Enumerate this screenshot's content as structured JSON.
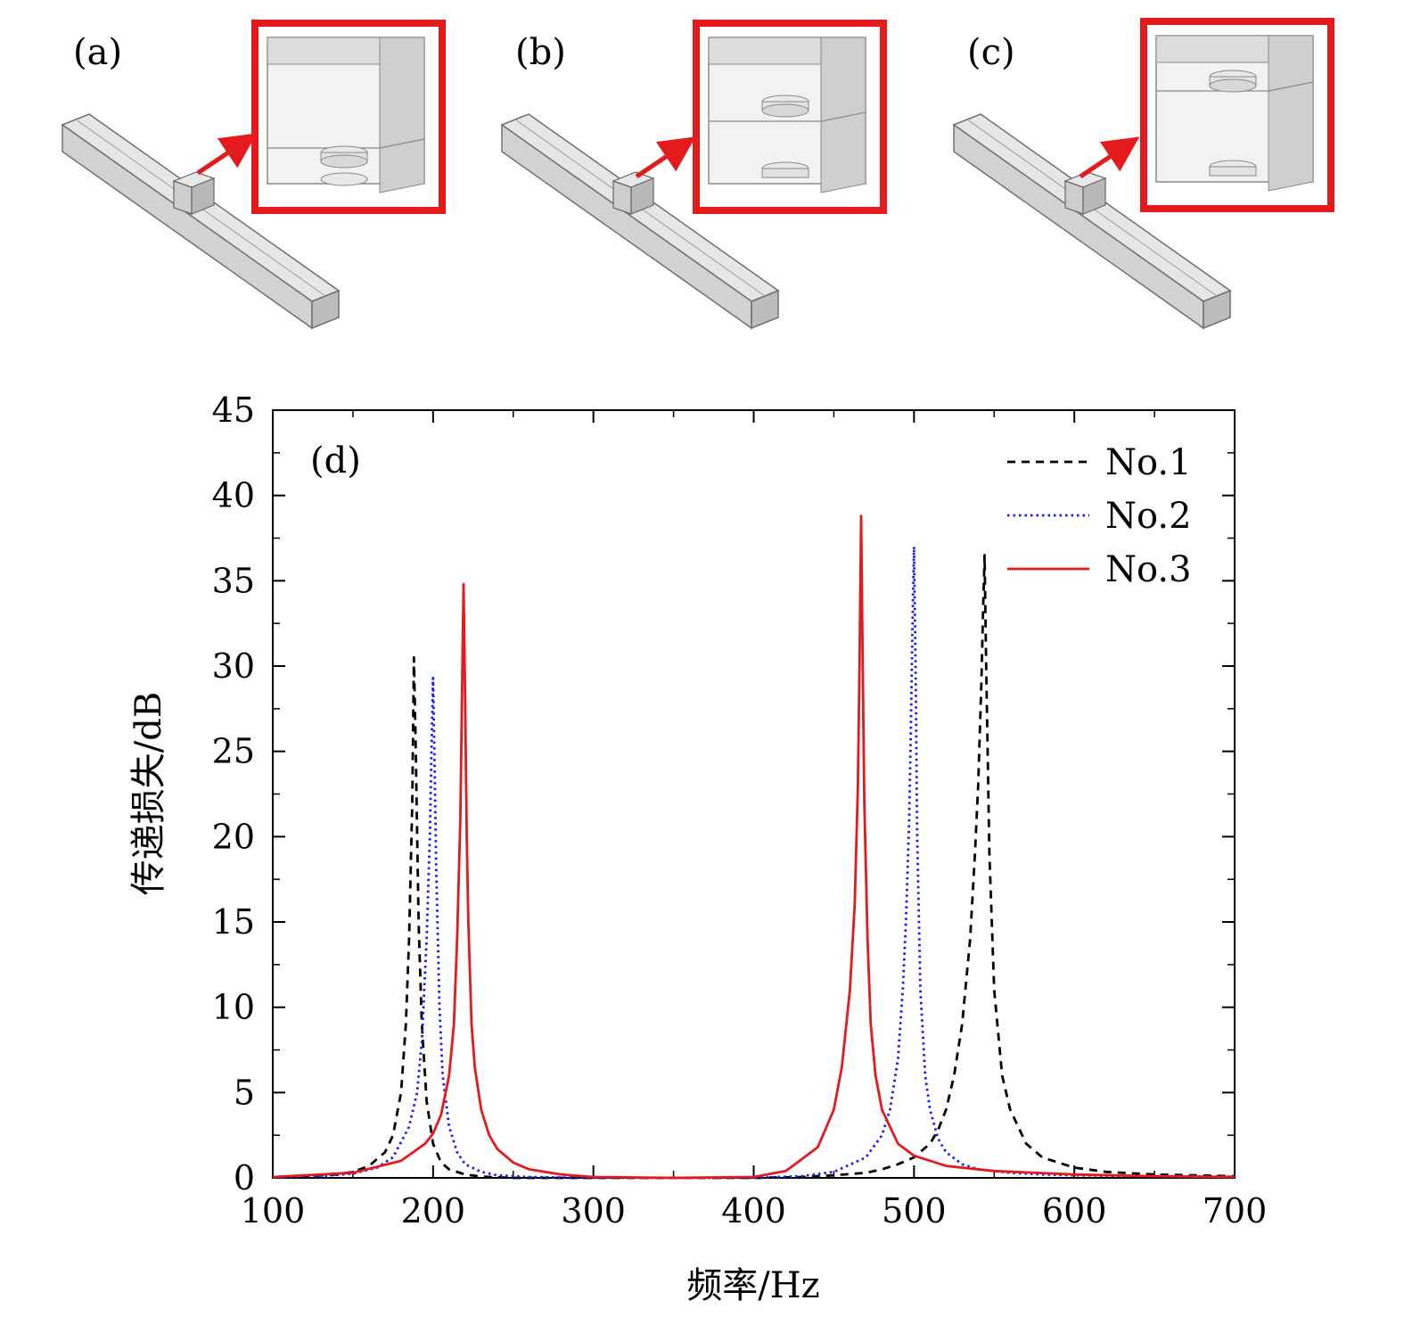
{
  "panels": {
    "a": {
      "label": "(a)"
    },
    "b": {
      "label": "(b)"
    },
    "c": {
      "label": "(c)"
    }
  },
  "colors": {
    "beam_face": "#dedede",
    "beam_edge": "#6f6f6f",
    "highlight_box": "#e41a1c",
    "arrow": "#e41a1c",
    "no1": "#000000",
    "no2": "#1a1aff",
    "no3": "#e41a1c"
  },
  "chart_data": {
    "type": "line",
    "panel_label": "(d)",
    "xlabel": "频率/Hz",
    "ylabel": "传递损失/dB",
    "xlim": [
      100,
      700
    ],
    "ylim": [
      0,
      45
    ],
    "xticks": [
      100,
      200,
      300,
      400,
      500,
      600,
      700
    ],
    "yticks": [
      0,
      5,
      10,
      15,
      20,
      25,
      30,
      35,
      40,
      45
    ],
    "legend_position": "top-right",
    "grid": false,
    "series": [
      {
        "name": "No.1",
        "style": "dashed",
        "color": "#000000",
        "x": [
          100,
          120,
          140,
          150,
          160,
          170,
          175,
          180,
          183,
          185,
          187,
          188,
          189,
          191,
          193,
          196,
          200,
          205,
          210,
          220,
          230,
          240,
          250,
          260,
          280,
          300,
          350,
          400,
          430,
          450,
          470,
          480,
          490,
          500,
          510,
          515,
          520,
          525,
          530,
          535,
          538,
          540,
          542,
          543,
          544,
          545,
          547,
          550,
          555,
          560,
          570,
          580,
          600,
          620,
          650,
          700
        ],
        "y": [
          0.05,
          0.1,
          0.2,
          0.35,
          0.7,
          1.5,
          2.5,
          5.0,
          9.0,
          14.0,
          22.0,
          30.5,
          26.0,
          15.0,
          9.0,
          4.5,
          2.0,
          0.9,
          0.5,
          0.2,
          0.08,
          0.03,
          0.0,
          0.0,
          0.0,
          0.0,
          0.0,
          0.0,
          0.05,
          0.15,
          0.3,
          0.5,
          0.8,
          1.2,
          2.0,
          2.8,
          4.0,
          6.0,
          9.0,
          14.0,
          19.0,
          23.0,
          29.0,
          33.0,
          36.5,
          30.0,
          19.0,
          11.0,
          6.0,
          4.0,
          2.0,
          1.2,
          0.6,
          0.35,
          0.2,
          0.1
        ]
      },
      {
        "name": "No.2",
        "style": "dotted",
        "color": "#1a1aff",
        "x": [
          100,
          130,
          150,
          165,
          175,
          185,
          190,
          193,
          196,
          198,
          199,
          200,
          201,
          202,
          204,
          206,
          210,
          215,
          220,
          230,
          240,
          260,
          280,
          300,
          400,
          430,
          450,
          470,
          480,
          485,
          490,
          493,
          495,
          497,
          498,
          499,
          500,
          501,
          502,
          504,
          507,
          510,
          515,
          520,
          530,
          540,
          560,
          580,
          600,
          650,
          700
        ],
        "y": [
          0.03,
          0.1,
          0.25,
          0.6,
          1.2,
          3.0,
          5.0,
          8.0,
          14.0,
          20.0,
          25.0,
          29.3,
          24.0,
          18.0,
          10.0,
          6.0,
          3.0,
          1.5,
          0.8,
          0.35,
          0.15,
          0.05,
          0.02,
          0.0,
          0.0,
          0.1,
          0.35,
          1.2,
          2.5,
          4.0,
          7.0,
          11.0,
          15.0,
          21.0,
          26.0,
          32.0,
          37.0,
          30.0,
          20.0,
          11.0,
          6.0,
          4.0,
          2.3,
          1.5,
          0.8,
          0.5,
          0.3,
          0.2,
          0.15,
          0.1,
          0.08
        ]
      },
      {
        "name": "No.3",
        "style": "solid",
        "color": "#e41a1c",
        "x": [
          100,
          150,
          180,
          195,
          200,
          205,
          210,
          213,
          215,
          217,
          218,
          219,
          220,
          221,
          222,
          224,
          226,
          230,
          235,
          240,
          250,
          260,
          280,
          300,
          350,
          400,
          420,
          440,
          450,
          455,
          460,
          463,
          465,
          466,
          467,
          468,
          469,
          471,
          473,
          476,
          480,
          490,
          500,
          520,
          550,
          600,
          650,
          700
        ],
        "y": [
          0.05,
          0.3,
          1.0,
          2.0,
          2.6,
          3.7,
          6.0,
          9.0,
          14.0,
          21.0,
          28.0,
          34.8,
          28.0,
          20.0,
          15.0,
          9.0,
          6.5,
          4.0,
          2.5,
          1.7,
          0.9,
          0.5,
          0.2,
          0.05,
          0.0,
          0.05,
          0.4,
          1.8,
          4.0,
          6.5,
          11.0,
          16.0,
          23.0,
          30.0,
          38.8,
          30.0,
          22.0,
          14.0,
          9.0,
          6.0,
          4.0,
          2.0,
          1.3,
          0.7,
          0.4,
          0.2,
          0.1,
          0.05
        ]
      }
    ]
  }
}
